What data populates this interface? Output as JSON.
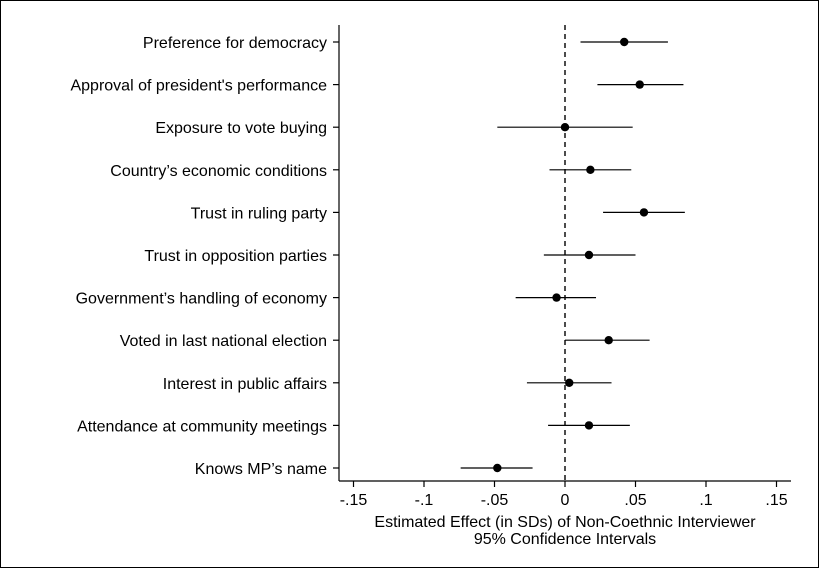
{
  "chart_data": {
    "type": "scatter",
    "style": "coefficient-plot with 95% confidence interval whiskers",
    "xlabel": "Estimated Effect (in SDs) of Non-Coethnic Interviewer",
    "xlabel2": "95% Confidence Intervals",
    "xlim": [
      -0.15,
      0.15
    ],
    "xticks": [
      -0.15,
      -0.1,
      -0.05,
      0,
      0.05,
      0.1,
      0.15
    ],
    "xtick_labels": [
      "-.15",
      "-.1",
      "-.05",
      "0",
      ".05",
      ".1",
      ".15"
    ],
    "reference_line": {
      "x": 0,
      "style": "dashed"
    },
    "grid": false,
    "items": [
      {
        "label": "Preference for democracy",
        "estimate": 0.042,
        "ci_low": 0.011,
        "ci_high": 0.073
      },
      {
        "label": "Approval of president's performance",
        "estimate": 0.053,
        "ci_low": 0.023,
        "ci_high": 0.084
      },
      {
        "label": "Exposure to vote buying",
        "estimate": 0.0,
        "ci_low": -0.048,
        "ci_high": 0.048
      },
      {
        "label": "Country’s economic conditions",
        "estimate": 0.018,
        "ci_low": -0.011,
        "ci_high": 0.047
      },
      {
        "label": "Trust in ruling party",
        "estimate": 0.056,
        "ci_low": 0.027,
        "ci_high": 0.085
      },
      {
        "label": "Trust in opposition parties",
        "estimate": 0.017,
        "ci_low": -0.015,
        "ci_high": 0.05
      },
      {
        "label": "Government’s handling of economy",
        "estimate": -0.006,
        "ci_low": -0.035,
        "ci_high": 0.022
      },
      {
        "label": "Voted in last national election",
        "estimate": 0.031,
        "ci_low": 0.0,
        "ci_high": 0.06
      },
      {
        "label": "Interest in public affairs",
        "estimate": 0.003,
        "ci_low": -0.027,
        "ci_high": 0.033
      },
      {
        "label": "Attendance at community meetings",
        "estimate": 0.017,
        "ci_low": -0.012,
        "ci_high": 0.046
      },
      {
        "label": "Knows MP’s name",
        "estimate": -0.048,
        "ci_low": -0.074,
        "ci_high": -0.023
      }
    ]
  }
}
